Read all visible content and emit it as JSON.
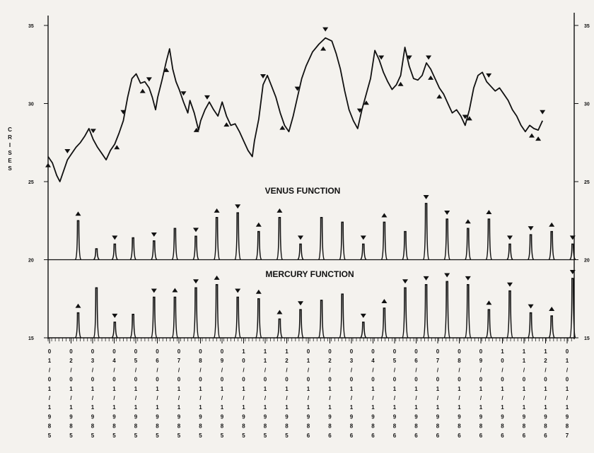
{
  "chart_data": {
    "type": "line",
    "ylabel": "CRISES",
    "left_ticks": [
      {
        "value": 35,
        "label": "35"
      },
      {
        "value": 30,
        "label": "30"
      },
      {
        "value": 25,
        "label": "25"
      },
      {
        "value": 20,
        "label": "20"
      },
      {
        "value": 15,
        "label": "15"
      }
    ],
    "right_ticks": [
      {
        "value": 35,
        "label": "35"
      },
      {
        "value": 30,
        "label": "30"
      },
      {
        "value": 25,
        "label": "25"
      },
      {
        "value": 20,
        "label": "20"
      },
      {
        "value": 15,
        "label": "15"
      }
    ],
    "ylim": [
      15,
      35
    ],
    "x_tick_labels": [
      "01/01/1985",
      "02/01/1985",
      "03/01/1985",
      "04/01/1985",
      "05/01/1985",
      "06/01/1985",
      "07/01/1985",
      "08/01/1985",
      "09/01/1985",
      "10/01/1985",
      "11/01/1985",
      "12/01/1985",
      "01/01/1986",
      "02/01/1986",
      "03/01/1986",
      "04/01/1986",
      "05/01/1986",
      "06/01/1986",
      "07/01/1986",
      "08/01/1986",
      "09/01/1986",
      "10/01/1986",
      "11/01/1986",
      "12/01/1986",
      "01/01/1987"
    ],
    "crises_series": {
      "points": [
        [
          0,
          26.6
        ],
        [
          0.2,
          26.2
        ],
        [
          0.4,
          25.4
        ],
        [
          0.55,
          25.0
        ],
        [
          0.7,
          25.6
        ],
        [
          0.9,
          26.4
        ],
        [
          1.1,
          26.8
        ],
        [
          1.3,
          27.2
        ],
        [
          1.5,
          27.5
        ],
        [
          1.7,
          27.9
        ],
        [
          1.9,
          28.4
        ],
        [
          2.1,
          27.7
        ],
        [
          2.3,
          27.2
        ],
        [
          2.5,
          26.8
        ],
        [
          2.7,
          26.4
        ],
        [
          2.9,
          27.0
        ],
        [
          3.1,
          27.4
        ],
        [
          3.3,
          28.1
        ],
        [
          3.5,
          28.9
        ],
        [
          3.7,
          30.4
        ],
        [
          3.9,
          31.6
        ],
        [
          4.1,
          31.9
        ],
        [
          4.3,
          31.3
        ],
        [
          4.5,
          31.4
        ],
        [
          4.7,
          31.0
        ],
        [
          4.85,
          30.4
        ],
        [
          5.0,
          29.6
        ],
        [
          5.1,
          30.4
        ],
        [
          5.3,
          31.5
        ],
        [
          5.5,
          32.7
        ],
        [
          5.65,
          33.5
        ],
        [
          5.8,
          32.2
        ],
        [
          5.95,
          31.4
        ],
        [
          6.1,
          30.9
        ],
        [
          6.3,
          30.1
        ],
        [
          6.5,
          29.4
        ],
        [
          6.6,
          30.2
        ],
        [
          6.8,
          29.4
        ],
        [
          7.0,
          28.3
        ],
        [
          7.1,
          28.9
        ],
        [
          7.3,
          29.6
        ],
        [
          7.5,
          30.1
        ],
        [
          7.7,
          29.6
        ],
        [
          7.9,
          29.2
        ],
        [
          8.1,
          30.1
        ],
        [
          8.3,
          29.2
        ],
        [
          8.5,
          28.6
        ],
        [
          8.7,
          28.7
        ],
        [
          8.9,
          28.2
        ],
        [
          9.1,
          27.6
        ],
        [
          9.3,
          27.0
        ],
        [
          9.5,
          26.6
        ],
        [
          9.6,
          27.6
        ],
        [
          9.8,
          29.0
        ],
        [
          10.0,
          31.2
        ],
        [
          10.2,
          31.8
        ],
        [
          10.4,
          31.1
        ],
        [
          10.6,
          30.4
        ],
        [
          10.8,
          29.4
        ],
        [
          11.0,
          28.6
        ],
        [
          11.2,
          28.2
        ],
        [
          11.4,
          29.2
        ],
        [
          11.6,
          30.4
        ],
        [
          11.8,
          31.6
        ],
        [
          12.0,
          32.4
        ],
        [
          12.3,
          33.3
        ],
        [
          12.6,
          33.8
        ],
        [
          12.9,
          34.2
        ],
        [
          13.2,
          34.0
        ],
        [
          13.4,
          33.2
        ],
        [
          13.6,
          32.2
        ],
        [
          13.8,
          30.8
        ],
        [
          14.0,
          29.6
        ],
        [
          14.2,
          28.9
        ],
        [
          14.4,
          28.4
        ],
        [
          14.6,
          29.6
        ],
        [
          14.8,
          30.6
        ],
        [
          15.0,
          31.6
        ],
        [
          15.2,
          33.4
        ],
        [
          15.4,
          32.8
        ],
        [
          15.6,
          32.0
        ],
        [
          15.8,
          31.4
        ],
        [
          16.0,
          30.9
        ],
        [
          16.2,
          31.2
        ],
        [
          16.4,
          31.8
        ],
        [
          16.6,
          33.6
        ],
        [
          16.8,
          32.4
        ],
        [
          17.0,
          31.6
        ],
        [
          17.2,
          31.5
        ],
        [
          17.4,
          31.8
        ],
        [
          17.6,
          32.6
        ],
        [
          17.8,
          32.2
        ],
        [
          18.0,
          31.6
        ],
        [
          18.2,
          31.0
        ],
        [
          18.4,
          30.6
        ],
        [
          18.6,
          30.0
        ],
        [
          18.8,
          29.4
        ],
        [
          19.0,
          29.6
        ],
        [
          19.2,
          29.2
        ],
        [
          19.4,
          28.6
        ],
        [
          19.6,
          29.6
        ],
        [
          19.8,
          31.0
        ],
        [
          20.0,
          31.8
        ],
        [
          20.2,
          32.0
        ],
        [
          20.4,
          31.4
        ],
        [
          20.6,
          31.1
        ],
        [
          20.8,
          30.8
        ],
        [
          21.0,
          31.0
        ],
        [
          21.2,
          30.6
        ],
        [
          21.4,
          30.2
        ],
        [
          21.6,
          29.6
        ],
        [
          21.8,
          29.2
        ],
        [
          22.0,
          28.6
        ],
        [
          22.2,
          28.2
        ],
        [
          22.4,
          28.6
        ],
        [
          22.6,
          28.4
        ],
        [
          22.8,
          28.3
        ],
        [
          23.0,
          28.9
        ]
      ],
      "peak_markers": [
        0.9,
        2.1,
        3.5,
        4.7,
        6.3,
        7.4,
        10.0,
        11.6,
        12.9,
        14.5,
        15.5,
        16.8,
        17.7,
        19.4,
        20.5,
        23.0
      ],
      "trough_markers": [
        0.0,
        3.2,
        4.4,
        5.5,
        6.9,
        8.3,
        10.9,
        12.8,
        14.8,
        16.4,
        17.8,
        18.2,
        19.6,
        22.5,
        22.8
      ]
    },
    "venus_function": {
      "label": "VENUS FUNCTION",
      "spikes": [
        [
          0.5,
          22.5,
          "up"
        ],
        [
          1.2,
          20.7,
          "none"
        ],
        [
          1.9,
          21.0,
          "down"
        ],
        [
          2.6,
          21.4,
          "none"
        ],
        [
          3.4,
          21.2,
          "down"
        ],
        [
          4.2,
          22.0,
          "none"
        ],
        [
          5.0,
          21.5,
          "down"
        ],
        [
          5.8,
          22.7,
          "up"
        ],
        [
          6.6,
          23.0,
          "down"
        ],
        [
          7.4,
          21.8,
          "up"
        ],
        [
          8.2,
          22.7,
          "up"
        ],
        [
          9.0,
          21.0,
          "down"
        ],
        [
          9.8,
          22.7,
          "none"
        ],
        [
          10.6,
          22.4,
          "none"
        ],
        [
          11.4,
          21.0,
          "down"
        ],
        [
          12.2,
          22.4,
          "up"
        ],
        [
          13.0,
          21.8,
          "none"
        ],
        [
          13.8,
          23.6,
          "down"
        ],
        [
          14.6,
          22.6,
          "down"
        ],
        [
          15.4,
          22.0,
          "up"
        ],
        [
          16.2,
          22.6,
          "up"
        ],
        [
          17.0,
          21.0,
          "down"
        ],
        [
          17.8,
          21.6,
          "down"
        ],
        [
          18.6,
          21.8,
          "up"
        ],
        [
          19.4,
          21.0,
          "down"
        ]
      ]
    },
    "mercury_function": {
      "label": "MERCURY FUNCTION",
      "spikes": [
        [
          0.5,
          16.6,
          "up"
        ],
        [
          1.2,
          18.2,
          "none"
        ],
        [
          1.9,
          16.0,
          "down"
        ],
        [
          2.6,
          16.5,
          "none"
        ],
        [
          3.4,
          17.6,
          "down"
        ],
        [
          4.2,
          17.6,
          "up"
        ],
        [
          5.0,
          18.2,
          "down"
        ],
        [
          5.8,
          18.4,
          "up"
        ],
        [
          6.6,
          17.6,
          "down"
        ],
        [
          7.4,
          17.5,
          "up"
        ],
        [
          8.2,
          16.2,
          "up"
        ],
        [
          9.0,
          16.8,
          "down"
        ],
        [
          9.8,
          17.4,
          "none"
        ],
        [
          10.6,
          17.8,
          "none"
        ],
        [
          11.4,
          16.0,
          "down"
        ],
        [
          12.2,
          16.9,
          "up"
        ],
        [
          13.0,
          18.2,
          "down"
        ],
        [
          13.8,
          18.4,
          "down"
        ],
        [
          14.6,
          18.6,
          "down"
        ],
        [
          15.4,
          18.4,
          "down"
        ],
        [
          16.2,
          16.8,
          "up"
        ],
        [
          17.0,
          18.0,
          "down"
        ],
        [
          17.8,
          16.6,
          "down"
        ],
        [
          18.6,
          16.4,
          "up"
        ],
        [
          19.4,
          18.8,
          "down"
        ]
      ]
    }
  }
}
